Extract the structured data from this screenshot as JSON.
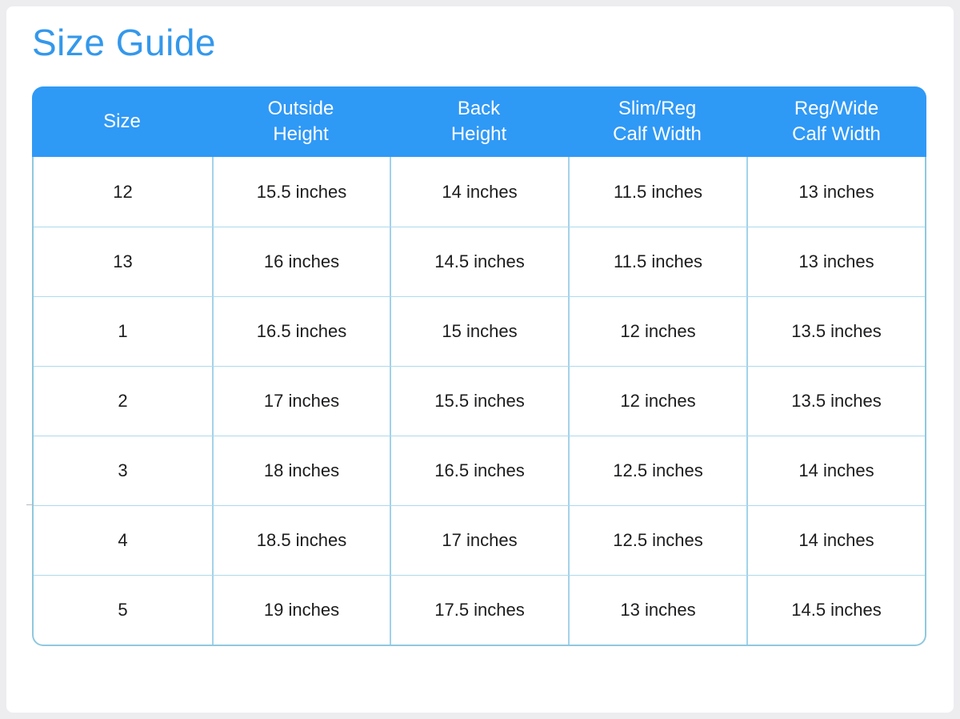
{
  "page": {
    "title": "Size Guide"
  },
  "colors": {
    "title_text": "#3498eb",
    "header_bg": "#2f99f6",
    "header_text": "#ffffff",
    "column_divider": "#a2d2ea",
    "row_divider": "#aed9ec",
    "table_outer_border": "#8fc8df",
    "body_text": "#1c1c1e",
    "page_bg": "#ededf0",
    "card_bg": "#ffffff"
  },
  "table": {
    "columns": [
      {
        "line1": "Size",
        "line2": ""
      },
      {
        "line1": "Outside",
        "line2": "Height"
      },
      {
        "line1": "Back",
        "line2": "Height"
      },
      {
        "line1": "Slim/Reg",
        "line2": "Calf Width"
      },
      {
        "line1": "Reg/Wide",
        "line2": "Calf Width"
      }
    ],
    "rows": [
      [
        "12",
        "15.5 inches",
        "14 inches",
        "11.5 inches",
        "13 inches"
      ],
      [
        "13",
        "16 inches",
        "14.5 inches",
        "11.5 inches",
        "13 inches"
      ],
      [
        "1",
        "16.5 inches",
        "15 inches",
        "12 inches",
        "13.5 inches"
      ],
      [
        "2",
        "17 inches",
        "15.5 inches",
        "12 inches",
        "13.5 inches"
      ],
      [
        "3",
        "18 inches",
        "16.5 inches",
        "12.5 inches",
        "14 inches"
      ],
      [
        "4",
        "18.5 inches",
        "17 inches",
        "12.5 inches",
        "14 inches"
      ],
      [
        "5",
        "19 inches",
        "17.5 inches",
        "13 inches",
        "14.5 inches"
      ]
    ]
  }
}
